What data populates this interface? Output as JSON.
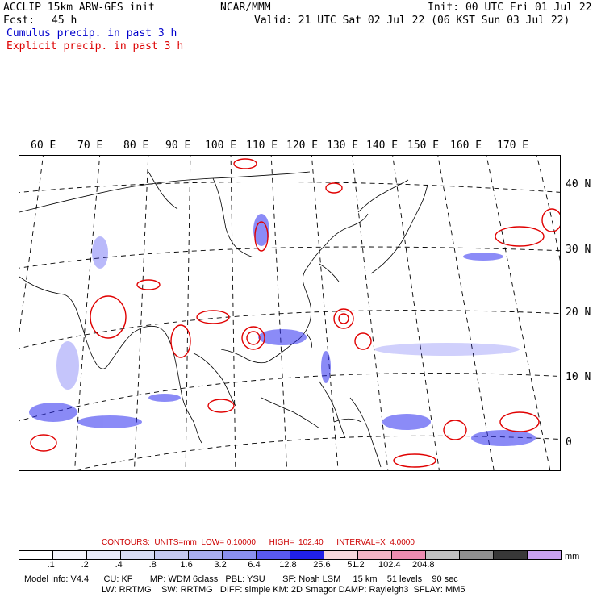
{
  "header": {
    "model_title": "ACCLIP 15km ARW-GFS init",
    "org": "NCAR/MMM",
    "init": "Init: 00 UTC Fri 01 Jul 22",
    "fcst_label": "Fcst:",
    "fcst_value": "45 h",
    "valid": "Valid: 21 UTC Sat 02 Jul 22 (06 KST Sun 03 Jul 22)",
    "legend_cumulus": "Cumulus precip. in past 3 h",
    "legend_explicit": "Explicit precip. in past 3 h"
  },
  "map": {
    "lon_labels": [
      "60 E",
      "70 E",
      "80 E",
      "90 E",
      "100 E",
      "110 E",
      "120 E",
      "130 E",
      "140 E",
      "150 E",
      "160 E",
      "170 E"
    ],
    "lat_labels": [
      "40 N",
      "30 N",
      "20 N",
      "10 N",
      "0"
    ],
    "colors": {
      "cumulus": "#2b2bf0",
      "explicit": "#e00000",
      "coast": "#000000"
    }
  },
  "contours": {
    "text": "CONTOURS:  UNITS=mm  LOW= 0.10000      HIGH=  102.40      INTERVAL=X  4.0000"
  },
  "colorbar": {
    "colors": [
      "#ffffff",
      "#f4f4fb",
      "#e7e9f8",
      "#d8dcf4",
      "#c4c8f0",
      "#a8aef0",
      "#8a90f0",
      "#5a5af0",
      "#2020e8",
      "#f7d8dc",
      "#f3b4c4",
      "#ec8cb0",
      "#c0c0c0",
      "#909090",
      "#383838",
      "#c8a0f0"
    ],
    "ticks": [
      ".1",
      ".2",
      ".4",
      ".8",
      "1.6",
      "3.2",
      "6.4",
      "12.8",
      "25.6",
      "51.2",
      "102.4",
      "204.8"
    ],
    "unit": "mm"
  },
  "footer": {
    "line1": "Model Info: V4.4      CU: KF       MP: WDM 6class   PBL: YSU       SF: Noah LSM     15 km    51 levels    90 sec",
    "line2": "LW: RRTMG    SW: RRTMG   DIFF: simple KM: 2D Smagor DAMP: Rayleigh3  SFLAY: MM5"
  }
}
